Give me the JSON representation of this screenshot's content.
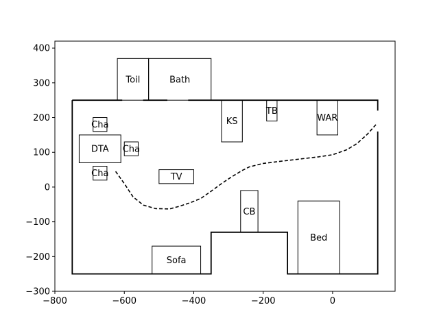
{
  "chart_data": {
    "type": "floor-plan",
    "title": "",
    "xlabel": "",
    "ylabel": "",
    "xlim": [
      -800,
      180
    ],
    "ylim": [
      -300,
      420
    ],
    "x_ticks": [
      -800,
      -600,
      -400,
      -200,
      0
    ],
    "y_ticks": [
      -300,
      -200,
      -100,
      0,
      100,
      200,
      300,
      400
    ],
    "x_tick_labels": [
      "−800",
      "−600",
      "−400",
      "−200",
      "0"
    ],
    "y_tick_labels": [
      "−300",
      "−200",
      "−100",
      "0",
      "100",
      "200",
      "300",
      "400"
    ],
    "outer_wall": [
      [
        -750,
        250
      ],
      [
        130,
        250
      ],
      [
        130,
        -250
      ],
      [
        -130,
        -250
      ],
      [
        -130,
        -130
      ],
      [
        -350,
        -130
      ],
      [
        -350,
        -250
      ],
      [
        -750,
        -250
      ],
      [
        -750,
        250
      ]
    ],
    "wall_gaps": [
      {
        "x1": -606,
        "x2": -546,
        "y": 250
      },
      {
        "x1": -476,
        "x2": -416,
        "y": 250
      },
      {
        "x1": 130,
        "x2": 130,
        "y1": 160,
        "y2": 220
      }
    ],
    "rooms": [
      {
        "label": "Toil",
        "x": -620,
        "y": 250,
        "w": 90,
        "h": 120
      },
      {
        "label": "Bath",
        "x": -530,
        "y": 250,
        "w": 180,
        "h": 120
      }
    ],
    "furniture": [
      {
        "label": "Cha",
        "x": -690,
        "y": 160,
        "w": 40,
        "h": 40
      },
      {
        "label": "DTA",
        "x": -730,
        "y": 70,
        "w": 120,
        "h": 80
      },
      {
        "label": "Cha",
        "x": -600,
        "y": 90,
        "w": 40,
        "h": 40
      },
      {
        "label": "Cha",
        "x": -690,
        "y": 20,
        "w": 40,
        "h": 40
      },
      {
        "label": "KS",
        "x": -320,
        "y": 130,
        "w": 60,
        "h": 120
      },
      {
        "label": "TB",
        "x": -190,
        "y": 190,
        "w": 30,
        "h": 60
      },
      {
        "label": "WAR",
        "x": -45,
        "y": 150,
        "w": 60,
        "h": 100
      },
      {
        "label": "TV",
        "x": -500,
        "y": 10,
        "w": 100,
        "h": 40
      },
      {
        "label": "CB",
        "x": -265,
        "y": -130,
        "w": 50,
        "h": 120
      },
      {
        "label": "Bed",
        "x": -100,
        "y": -250,
        "w": 120,
        "h": 210
      },
      {
        "label": "Sofa",
        "x": -520,
        "y": -250,
        "w": 140,
        "h": 80
      }
    ],
    "path": [
      [
        -625,
        45
      ],
      [
        -600,
        10
      ],
      [
        -575,
        -28
      ],
      [
        -545,
        -52
      ],
      [
        -510,
        -62
      ],
      [
        -470,
        -63
      ],
      [
        -440,
        -55
      ],
      [
        -410,
        -45
      ],
      [
        -380,
        -33
      ],
      [
        -350,
        -12
      ],
      [
        -320,
        10
      ],
      [
        -290,
        30
      ],
      [
        -260,
        48
      ],
      [
        -240,
        58
      ],
      [
        -200,
        68
      ],
      [
        -160,
        73
      ],
      [
        -100,
        80
      ],
      [
        -40,
        87
      ],
      [
        0,
        93
      ],
      [
        40,
        107
      ],
      [
        70,
        125
      ],
      [
        100,
        152
      ],
      [
        125,
        180
      ]
    ]
  }
}
